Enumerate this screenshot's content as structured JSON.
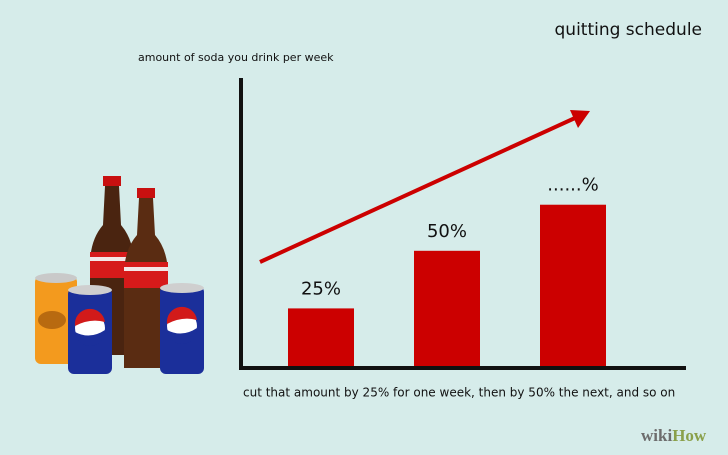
{
  "chart_data": {
    "type": "bar",
    "title": "quitting schedule",
    "ylabel": "amount of soda you drink per week",
    "xlabel": "cut that amount by 25% for one week, then by 50% the next, and so on",
    "values": [
      25,
      50,
      70
    ],
    "value_labels": [
      "25%",
      "50%",
      "......%"
    ],
    "color": "#cc0000",
    "ylim": [
      0,
      125
    ],
    "watermark": [
      "wiki",
      "How"
    ]
  }
}
